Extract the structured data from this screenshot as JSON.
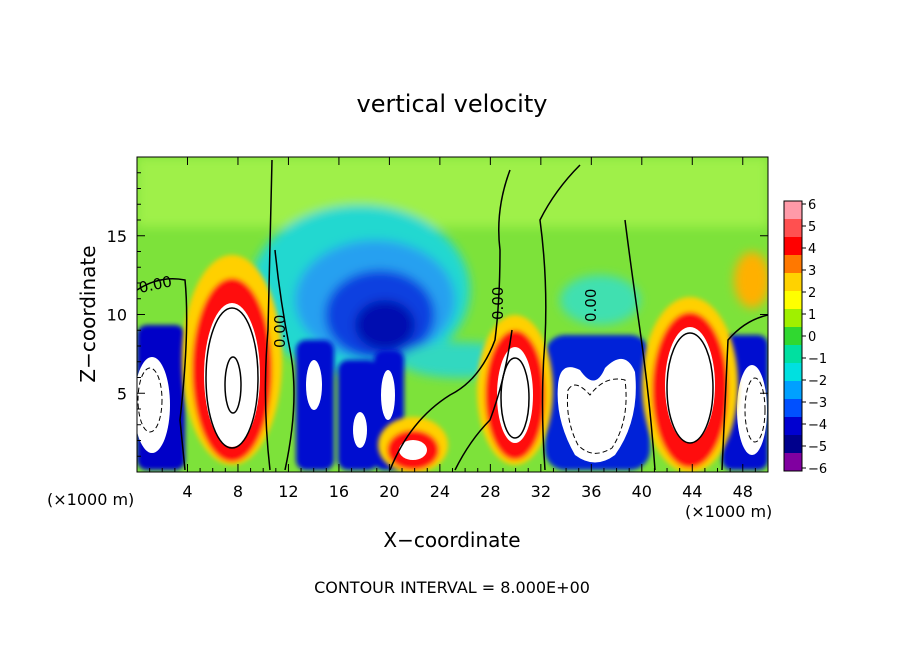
{
  "chart_data": {
    "type": "heatmap",
    "title": "vertical velocity",
    "xlabel": "X−coordinate",
    "ylabel": "Z−coordinate",
    "x_units": "(×1000 m)",
    "y_units": "(×1000 m)",
    "xlim": [
      0,
      50
    ],
    "ylim": [
      0,
      20
    ],
    "x_ticks": [
      4,
      8,
      12,
      16,
      20,
      24,
      28,
      32,
      36,
      40,
      44,
      48
    ],
    "y_ticks": [
      5,
      10,
      15
    ],
    "colorbar": {
      "range": [
        -6,
        6
      ],
      "tick_labels": [
        "6",
        "5",
        "4",
        "3",
        "2",
        "1",
        "0",
        "−1",
        "−2",
        "−3",
        "−4",
        "−5",
        "−6"
      ],
      "colors": [
        "#ff9aa8",
        "#ff5050",
        "#ff0000",
        "#ff7800",
        "#ffd200",
        "#ffff00",
        "#a0f000",
        "#30d830",
        "#00e0a0",
        "#00e0e0",
        "#00a0ff",
        "#0050ff",
        "#0000d0",
        "#00008c",
        "#8000a0"
      ]
    },
    "contour_labels": [
      "0.00",
      "0.00",
      "0.00",
      "0.00"
    ],
    "updrafts": [
      {
        "x": 7.8,
        "z": 6.5,
        "w_max": 6
      },
      {
        "x": 20.8,
        "z": 1.5,
        "w_max": 6
      },
      {
        "x": 29.8,
        "z": 5.5,
        "w_max": 6
      },
      {
        "x": 43.8,
        "z": 6.0,
        "w_max": 6
      }
    ],
    "downdrafts": [
      {
        "x": 1.0,
        "z": 5.0,
        "w_min": -6
      },
      {
        "x": 13.8,
        "z": 5.5,
        "w_min": -6
      },
      {
        "x": 17.0,
        "z": 4.0,
        "w_min": -6
      },
      {
        "x": 19.5,
        "z": 4.0,
        "w_min": -6
      },
      {
        "x": 35.8,
        "z": 4.5,
        "w_min": -6
      },
      {
        "x": 48.8,
        "z": 4.5,
        "w_min": -6
      }
    ],
    "annotation": "CONTOUR INTERVAL = 8.000E+00"
  }
}
